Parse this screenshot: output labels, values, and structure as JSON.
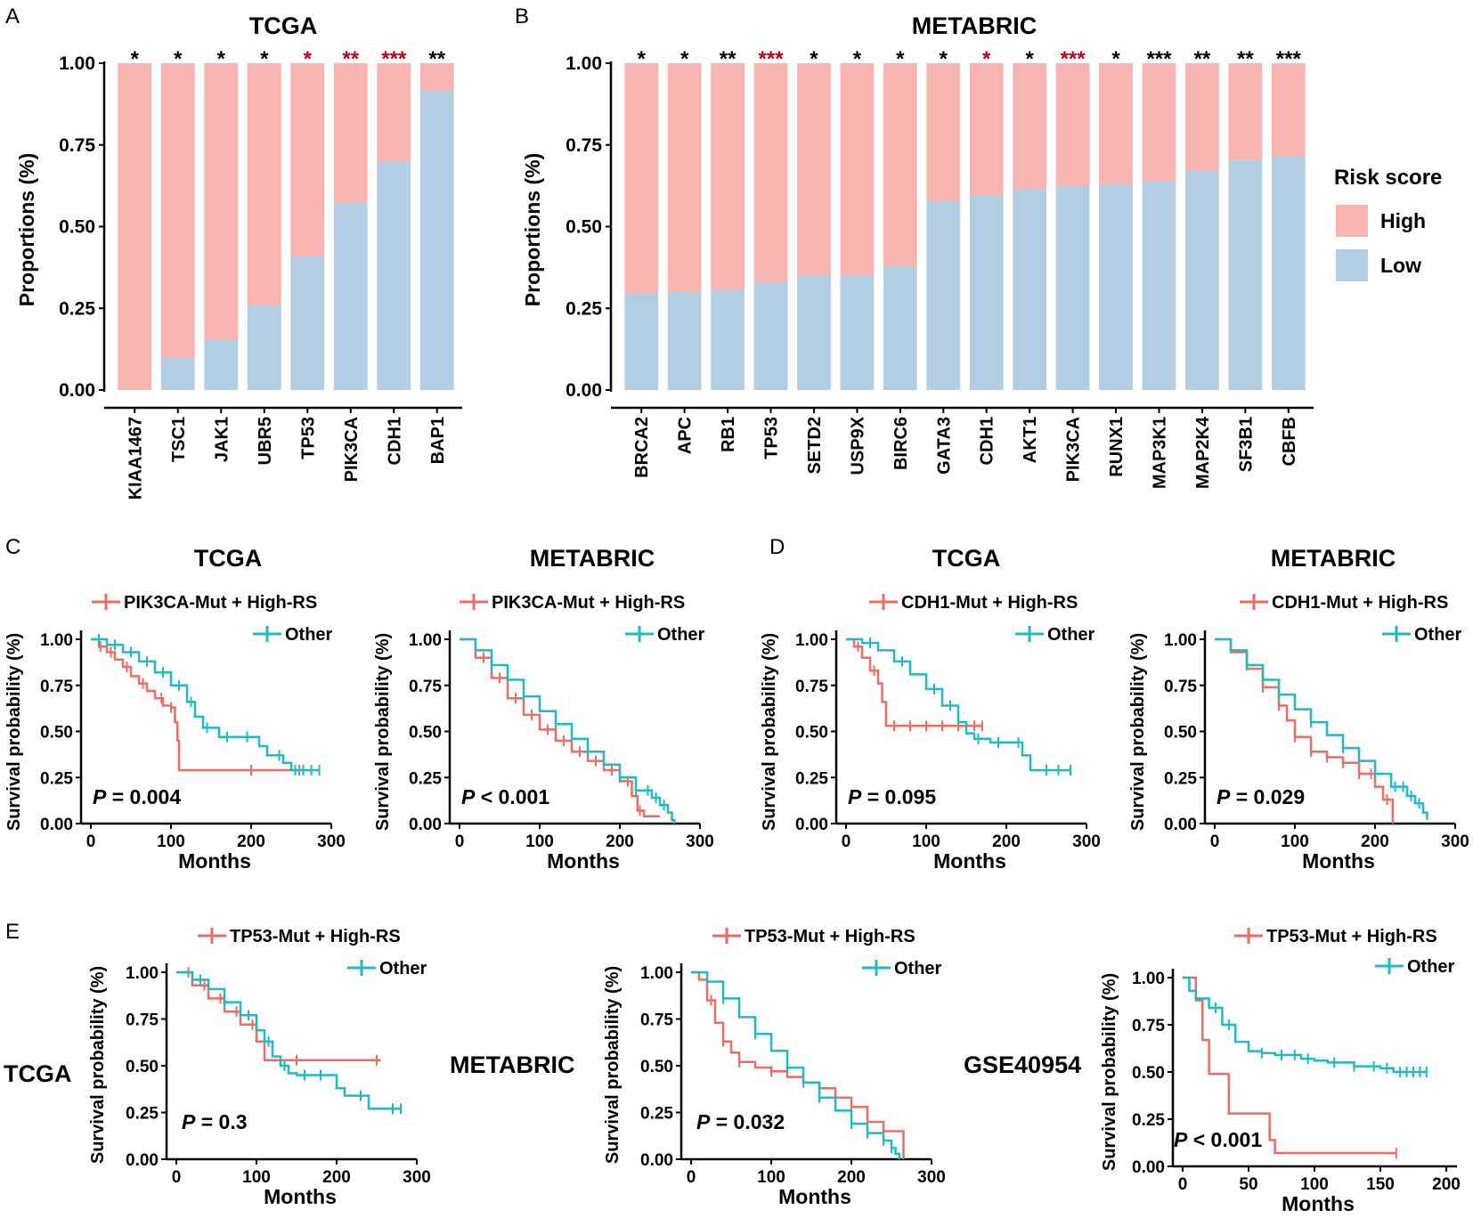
{
  "colors": {
    "high": "#f8b4b0",
    "low": "#b3cde3",
    "mut": "#f06b61",
    "other": "#1fbbc4",
    "sig_black": "#000000",
    "sig_red": "#c0001a"
  },
  "legend": {
    "title": "Risk score",
    "high": "High",
    "low": "Low"
  },
  "chart_data": [
    {
      "id": "A",
      "type": "bar",
      "stacked": true,
      "title": "TCGA",
      "panel": "A",
      "ylabel": "Proportions (%)",
      "ylim": [
        0,
        1
      ],
      "yticks": [
        "0.00",
        "0.25",
        "0.50",
        "0.75",
        "1.00"
      ],
      "categories": [
        "KIAA1467",
        "TSC1",
        "JAK1",
        "UBR5",
        "TP53",
        "PIK3CA",
        "CDH1",
        "BAP1"
      ],
      "series": [
        {
          "name": "Low",
          "values": [
            0.0,
            0.1,
            0.155,
            0.26,
            0.41,
            0.575,
            0.7,
            0.915
          ]
        },
        {
          "name": "High",
          "values": [
            1.0,
            0.9,
            0.845,
            0.74,
            0.59,
            0.425,
            0.3,
            0.085
          ]
        }
      ],
      "significance": [
        "*",
        "*",
        "*",
        "*",
        "*",
        "**",
        "***",
        "**"
      ],
      "significance_colors": [
        "black",
        "black",
        "black",
        "black",
        "red",
        "red",
        "red",
        "black"
      ]
    },
    {
      "id": "B",
      "type": "bar",
      "stacked": true,
      "title": "METABRIC",
      "panel": "B",
      "ylabel": "Proportions (%)",
      "ylim": [
        0,
        1
      ],
      "yticks": [
        "0.00",
        "0.25",
        "0.50",
        "0.75",
        "1.00"
      ],
      "categories": [
        "BRCA2",
        "APC",
        "RB1",
        "TP53",
        "SETD2",
        "USP9X",
        "BIRC6",
        "GATA3",
        "CDH1",
        "AKT1",
        "PIK3CA",
        "RUNX1",
        "MAP3K1",
        "MAP2K4",
        "SF3B1",
        "CBFB"
      ],
      "series": [
        {
          "name": "Low",
          "values": [
            0.295,
            0.3,
            0.305,
            0.33,
            0.35,
            0.35,
            0.38,
            0.58,
            0.595,
            0.615,
            0.625,
            0.63,
            0.64,
            0.67,
            0.705,
            0.715
          ]
        },
        {
          "name": "High",
          "values": [
            0.705,
            0.7,
            0.695,
            0.67,
            0.65,
            0.65,
            0.62,
            0.42,
            0.405,
            0.385,
            0.375,
            0.37,
            0.36,
            0.33,
            0.295,
            0.285
          ]
        }
      ],
      "significance": [
        "*",
        "*",
        "**",
        "***",
        "*",
        "*",
        "*",
        "*",
        "*",
        "*",
        "***",
        "*",
        "***",
        "**",
        "**",
        "***"
      ],
      "significance_colors": [
        "black",
        "black",
        "black",
        "red",
        "black",
        "black",
        "black",
        "black",
        "red",
        "black",
        "red",
        "black",
        "black",
        "black",
        "black",
        "black"
      ]
    },
    {
      "id": "C1",
      "type": "line",
      "subtype": "kaplan-meier",
      "panel": "C",
      "title": "TCGA",
      "xlabel": "Months",
      "ylabel": "Survival probability (%)",
      "xlim": [
        0,
        300
      ],
      "ylim": [
        0,
        1
      ],
      "xticks": [
        "0",
        "100",
        "200",
        "300"
      ],
      "yticks": [
        "0.00",
        "0.25",
        "0.50",
        "0.75",
        "1.00"
      ],
      "pvalue": {
        "label": "P",
        "text": "= 0.004"
      },
      "series": [
        {
          "name": "PIK3CA-Mut + High-RS",
          "color": "mut",
          "x": [
            0,
            10,
            20,
            30,
            40,
            50,
            60,
            70,
            80,
            90,
            100,
            105,
            108,
            110,
            150,
            200,
            250,
            270
          ],
          "y": [
            1.0,
            0.96,
            0.93,
            0.89,
            0.85,
            0.8,
            0.76,
            0.72,
            0.68,
            0.64,
            0.63,
            0.55,
            0.45,
            0.29,
            0.29,
            0.29,
            0.29,
            0.29
          ],
          "censor_x": [
            12,
            25,
            45,
            65,
            88,
            100,
            200,
            260
          ]
        },
        {
          "name": "Other",
          "color": "other",
          "x": [
            0,
            20,
            40,
            60,
            80,
            100,
            120,
            130,
            140,
            160,
            180,
            200,
            210,
            220,
            230,
            240,
            250,
            260,
            270,
            285
          ],
          "y": [
            1.0,
            0.97,
            0.93,
            0.88,
            0.82,
            0.75,
            0.66,
            0.58,
            0.52,
            0.47,
            0.47,
            0.47,
            0.42,
            0.37,
            0.37,
            0.33,
            0.29,
            0.29,
            0.29,
            0.29
          ],
          "censor_x": [
            10,
            30,
            50,
            70,
            90,
            110,
            125,
            145,
            170,
            195,
            235,
            255,
            265,
            275,
            285
          ]
        }
      ]
    },
    {
      "id": "C2",
      "type": "line",
      "subtype": "kaplan-meier",
      "panel": "C",
      "title": "METABRIC",
      "xlabel": "Months",
      "ylabel": "Survival probability (%)",
      "xlim": [
        0,
        300
      ],
      "ylim": [
        0,
        1
      ],
      "xticks": [
        "0",
        "100",
        "200",
        "300"
      ],
      "yticks": [
        "0.00",
        "0.25",
        "0.50",
        "0.75",
        "1.00"
      ],
      "pvalue": {
        "label": "P",
        "text": "< 0.001"
      },
      "series": [
        {
          "name": "PIK3CA-Mut + High-RS",
          "color": "mut",
          "x": [
            0,
            20,
            40,
            60,
            80,
            100,
            120,
            140,
            160,
            180,
            200,
            215,
            222,
            230,
            250
          ],
          "y": [
            1.0,
            0.9,
            0.79,
            0.68,
            0.59,
            0.51,
            0.45,
            0.39,
            0.34,
            0.29,
            0.23,
            0.15,
            0.07,
            0.04,
            0.04
          ],
          "censor_x": [
            30,
            50,
            70,
            90,
            110,
            130,
            150,
            170,
            190,
            210,
            225
          ]
        },
        {
          "name": "Other",
          "color": "other",
          "x": [
            0,
            20,
            40,
            60,
            80,
            100,
            120,
            140,
            160,
            180,
            200,
            220,
            240,
            250,
            260,
            265,
            268
          ],
          "y": [
            1.0,
            0.94,
            0.86,
            0.78,
            0.69,
            0.61,
            0.54,
            0.46,
            0.39,
            0.32,
            0.25,
            0.18,
            0.14,
            0.1,
            0.06,
            0.02,
            0.0
          ],
          "censor_x": [
            40,
            80,
            120,
            160,
            200,
            220,
            235,
            245,
            255
          ]
        }
      ]
    },
    {
      "id": "D1",
      "type": "line",
      "subtype": "kaplan-meier",
      "panel": "D",
      "title": "TCGA",
      "xlabel": "Months",
      "ylabel": "Survival probability (%)",
      "xlim": [
        0,
        300
      ],
      "ylim": [
        0,
        1
      ],
      "xticks": [
        "0",
        "100",
        "200",
        "300"
      ],
      "yticks": [
        "0.00",
        "0.25",
        "0.50",
        "0.75",
        "1.00"
      ],
      "pvalue": {
        "label": "P",
        "text": "= 0.095"
      },
      "series": [
        {
          "name": "CDH1-Mut + High-RS",
          "color": "mut",
          "x": [
            0,
            10,
            20,
            30,
            40,
            45,
            50,
            55,
            100,
            150,
            170
          ],
          "y": [
            1.0,
            0.96,
            0.9,
            0.83,
            0.76,
            0.66,
            0.53,
            0.53,
            0.53,
            0.53,
            0.53
          ],
          "censor_x": [
            15,
            35,
            60,
            80,
            100,
            120,
            140,
            160,
            170
          ]
        },
        {
          "name": "Other",
          "color": "other",
          "x": [
            0,
            20,
            40,
            60,
            80,
            100,
            120,
            140,
            150,
            160,
            180,
            200,
            210,
            220,
            230,
            250,
            280
          ],
          "y": [
            1.0,
            0.98,
            0.94,
            0.88,
            0.81,
            0.73,
            0.64,
            0.55,
            0.49,
            0.46,
            0.44,
            0.44,
            0.44,
            0.37,
            0.29,
            0.29,
            0.29
          ],
          "censor_x": [
            30,
            70,
            110,
            130,
            165,
            190,
            215,
            250,
            265,
            280
          ]
        }
      ]
    },
    {
      "id": "D2",
      "type": "line",
      "subtype": "kaplan-meier",
      "panel": "D",
      "title": "METABRIC",
      "xlabel": "Months",
      "ylabel": "Survival probability (%)",
      "xlim": [
        0,
        300
      ],
      "ylim": [
        0,
        1
      ],
      "xticks": [
        "0",
        "100",
        "200",
        "300"
      ],
      "yticks": [
        "0.00",
        "0.25",
        "0.50",
        "0.75",
        "1.00"
      ],
      "pvalue": {
        "label": "P",
        "text": "= 0.029"
      },
      "series": [
        {
          "name": "CDH1-Mut + High-RS",
          "color": "mut",
          "x": [
            0,
            20,
            40,
            60,
            80,
            90,
            100,
            120,
            140,
            160,
            180,
            200,
            210,
            220,
            222
          ],
          "y": [
            1.0,
            0.93,
            0.84,
            0.74,
            0.64,
            0.56,
            0.47,
            0.39,
            0.36,
            0.33,
            0.27,
            0.2,
            0.13,
            0.13,
            0.0
          ],
          "censor_x": [
            60,
            80,
            100,
            120,
            140,
            160,
            180,
            195,
            215
          ]
        },
        {
          "name": "Other",
          "color": "other",
          "x": [
            0,
            20,
            40,
            60,
            80,
            100,
            120,
            140,
            160,
            180,
            200,
            220,
            240,
            250,
            260,
            265
          ],
          "y": [
            1.0,
            0.94,
            0.86,
            0.78,
            0.7,
            0.62,
            0.55,
            0.48,
            0.41,
            0.34,
            0.27,
            0.2,
            0.15,
            0.11,
            0.06,
            0.02
          ],
          "censor_x": [
            40,
            80,
            120,
            160,
            200,
            225,
            235,
            245,
            255
          ]
        }
      ]
    },
    {
      "id": "E1",
      "type": "line",
      "subtype": "kaplan-meier",
      "panel": "E",
      "title": "TCGA",
      "xlabel": "Months",
      "ylabel": "Survival probability (%)",
      "xlim": [
        0,
        300
      ],
      "ylim": [
        0,
        1
      ],
      "xticks": [
        "0",
        "100",
        "200",
        "300"
      ],
      "yticks": [
        "0.00",
        "0.25",
        "0.50",
        "0.75",
        "1.00"
      ],
      "pvalue": {
        "label": "P",
        "text": "= 0.3"
      },
      "series": [
        {
          "name": "TP53-Mut + High-RS",
          "color": "mut",
          "x": [
            0,
            20,
            40,
            60,
            80,
            100,
            110,
            120,
            200,
            255
          ],
          "y": [
            1.0,
            0.93,
            0.86,
            0.79,
            0.72,
            0.63,
            0.53,
            0.53,
            0.53,
            0.53
          ],
          "censor_x": [
            15,
            35,
            55,
            75,
            95,
            150,
            250
          ]
        },
        {
          "name": "Other",
          "color": "other",
          "x": [
            0,
            20,
            40,
            60,
            80,
            100,
            110,
            120,
            130,
            140,
            150,
            160,
            170,
            180,
            190,
            200,
            210,
            220,
            240,
            260,
            280
          ],
          "y": [
            1.0,
            0.96,
            0.91,
            0.84,
            0.77,
            0.69,
            0.63,
            0.55,
            0.5,
            0.46,
            0.45,
            0.45,
            0.45,
            0.45,
            0.45,
            0.38,
            0.34,
            0.34,
            0.27,
            0.27,
            0.27
          ],
          "censor_x": [
            30,
            60,
            90,
            115,
            135,
            160,
            180,
            230,
            270,
            280
          ]
        }
      ]
    },
    {
      "id": "E2",
      "type": "line",
      "subtype": "kaplan-meier",
      "panel": "E",
      "title": "METABRIC",
      "xlabel": "Months",
      "ylabel": "Survival probability (%)",
      "xlim": [
        0,
        300
      ],
      "ylim": [
        0,
        1
      ],
      "xticks": [
        "0",
        "100",
        "200",
        "300"
      ],
      "yticks": [
        "0.00",
        "0.25",
        "0.50",
        "0.75",
        "1.00"
      ],
      "pvalue": {
        "label": "P",
        "text": "= 0.032"
      },
      "series": [
        {
          "name": "TP53-Mut + High-RS",
          "color": "mut",
          "x": [
            0,
            10,
            20,
            30,
            40,
            50,
            60,
            80,
            100,
            120,
            140,
            160,
            180,
            200,
            220,
            240,
            250,
            265
          ],
          "y": [
            1.0,
            0.96,
            0.85,
            0.73,
            0.63,
            0.57,
            0.52,
            0.49,
            0.47,
            0.44,
            0.41,
            0.38,
            0.33,
            0.28,
            0.2,
            0.15,
            0.15,
            0.0
          ],
          "censor_x": [
            25,
            40,
            60,
            100,
            140,
            160,
            180,
            200,
            220
          ]
        },
        {
          "name": "Other",
          "color": "other",
          "x": [
            0,
            20,
            40,
            60,
            80,
            100,
            120,
            140,
            160,
            180,
            200,
            220,
            240,
            250,
            255,
            260
          ],
          "y": [
            1.0,
            0.95,
            0.86,
            0.76,
            0.67,
            0.58,
            0.49,
            0.41,
            0.33,
            0.26,
            0.19,
            0.14,
            0.1,
            0.06,
            0.03,
            0.0
          ],
          "censor_x": [
            40,
            80,
            120,
            160,
            200,
            220,
            240,
            250
          ]
        }
      ]
    },
    {
      "id": "E3",
      "type": "line",
      "subtype": "kaplan-meier",
      "panel": "E",
      "title": "GSE40954",
      "xlabel": "Months",
      "ylabel": "Survival probability (%)",
      "xlim": [
        0,
        200
      ],
      "ylim": [
        0,
        1
      ],
      "xticks": [
        "0",
        "50",
        "100",
        "150",
        "200"
      ],
      "yticks": [
        "0.00",
        "0.25",
        "0.50",
        "0.75",
        "1.00"
      ],
      "pvalue": {
        "label": "P",
        "text": "< 0.001"
      },
      "series": [
        {
          "name": "TP53-Mut + High-RS",
          "color": "mut",
          "x": [
            0,
            10,
            15,
            20,
            30,
            35,
            60,
            66,
            70,
            100,
            162
          ],
          "y": [
            1.0,
            0.88,
            0.67,
            0.49,
            0.49,
            0.28,
            0.28,
            0.14,
            0.07,
            0.07,
            0.07
          ],
          "censor_x": [
            162
          ]
        },
        {
          "name": "Other",
          "color": "other",
          "x": [
            0,
            5,
            10,
            20,
            30,
            40,
            50,
            60,
            70,
            80,
            90,
            100,
            110,
            130,
            150,
            160,
            170,
            185
          ],
          "y": [
            1.0,
            0.93,
            0.89,
            0.84,
            0.75,
            0.66,
            0.61,
            0.6,
            0.59,
            0.59,
            0.57,
            0.56,
            0.55,
            0.53,
            0.52,
            0.5,
            0.5,
            0.5
          ],
          "censor_x": [
            25,
            35,
            60,
            75,
            85,
            95,
            115,
            130,
            145,
            155,
            165,
            170,
            175,
            180,
            185
          ]
        }
      ]
    }
  ]
}
